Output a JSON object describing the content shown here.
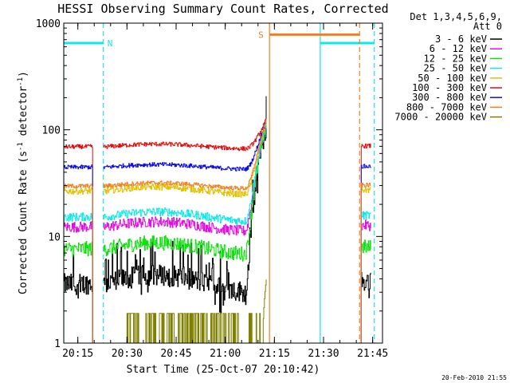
{
  "chart_data": {
    "type": "line",
    "title": "HESSI Observing Summary Count Rates, Corrected",
    "xlabel": "Start Time (25-Oct-07 20:10:42)",
    "ylabel_main": "Corrected Count Rate (s",
    "ylabel_sup1": "-1",
    "ylabel_mid": " detector",
    "ylabel_sup2": "-1",
    "ylabel_end": ")",
    "y_scale": "log",
    "ylim": [
      1,
      1000
    ],
    "xlim_min": [
      1210.7,
      1308
    ],
    "x_ticks": [
      {
        "min": 1215,
        "label": "20:15"
      },
      {
        "min": 1230,
        "label": "20:30"
      },
      {
        "min": 1245,
        "label": "20:45"
      },
      {
        "min": 1260,
        "label": "21:00"
      },
      {
        "min": 1275,
        "label": "21:15"
      },
      {
        "min": 1290,
        "label": "21:30"
      },
      {
        "min": 1305,
        "label": "21:45"
      }
    ],
    "y_ticks": [
      {
        "value": 1,
        "label": "1"
      },
      {
        "value": 10,
        "label": "10"
      },
      {
        "value": 100,
        "label": "100"
      },
      {
        "value": 1000,
        "label": "1000"
      }
    ],
    "legend": {
      "header1": "Det 1,3,4,5,6,9,",
      "header2": "Att 0",
      "placement": "right"
    },
    "series": [
      {
        "name": "3 - 6 keV",
        "color": "#000000",
        "base": 3.7,
        "amp": 0.18,
        "noise": 0.1,
        "spike": true
      },
      {
        "name": "6 - 12 keV",
        "color": "#e010e0",
        "base": 12.5,
        "amp": 0.1,
        "noise": 0.05
      },
      {
        "name": "12 - 25 keV",
        "color": "#10e010",
        "base": 7.8,
        "amp": 0.12,
        "noise": 0.07
      },
      {
        "name": "25 - 50 keV",
        "color": "#10e8e8",
        "base": 15.5,
        "amp": 0.1,
        "noise": 0.04
      },
      {
        "name": "50 - 100 keV",
        "color": "#e0c000",
        "base": 27,
        "amp": 0.08,
        "noise": 0.03
      },
      {
        "name": "100 - 300 keV",
        "color": "#e01010",
        "base": 70,
        "amp": 0.05,
        "noise": 0.02
      },
      {
        "name": "300 - 800 keV",
        "color": "#1010e0",
        "base": 45,
        "amp": 0.05,
        "noise": 0.02
      },
      {
        "name": "800 - 7000 keV",
        "color": "#f08020",
        "base": 30,
        "amp": 0.06,
        "noise": 0.02
      },
      {
        "name": "7000 - 20000 keV",
        "color": "#808000",
        "base": 1.0,
        "amp": 0,
        "noise": 0
      }
    ],
    "data_segments": [
      [
        1210.7,
        1219.5
      ],
      [
        1222.8,
        1272.5
      ],
      [
        1301.5,
        1304.5
      ]
    ],
    "night_marks": [
      {
        "start": 1210.7,
        "end": 1222.8,
        "label": "N"
      },
      {
        "start": 1289.0,
        "end": 1305.5,
        "label": ""
      }
    ],
    "saa_marks": [
      {
        "start": 1273.5,
        "end": 1301.0,
        "label": "S"
      }
    ],
    "night_line_value": 650,
    "saa_line_value": 780
  },
  "footer": {
    "date_stamp": "20-Feb-2010 21:55"
  },
  "colors": {
    "night": "#10e8e8",
    "saa": "#f08020",
    "axis": "#000000",
    "background": "#ffffff"
  }
}
